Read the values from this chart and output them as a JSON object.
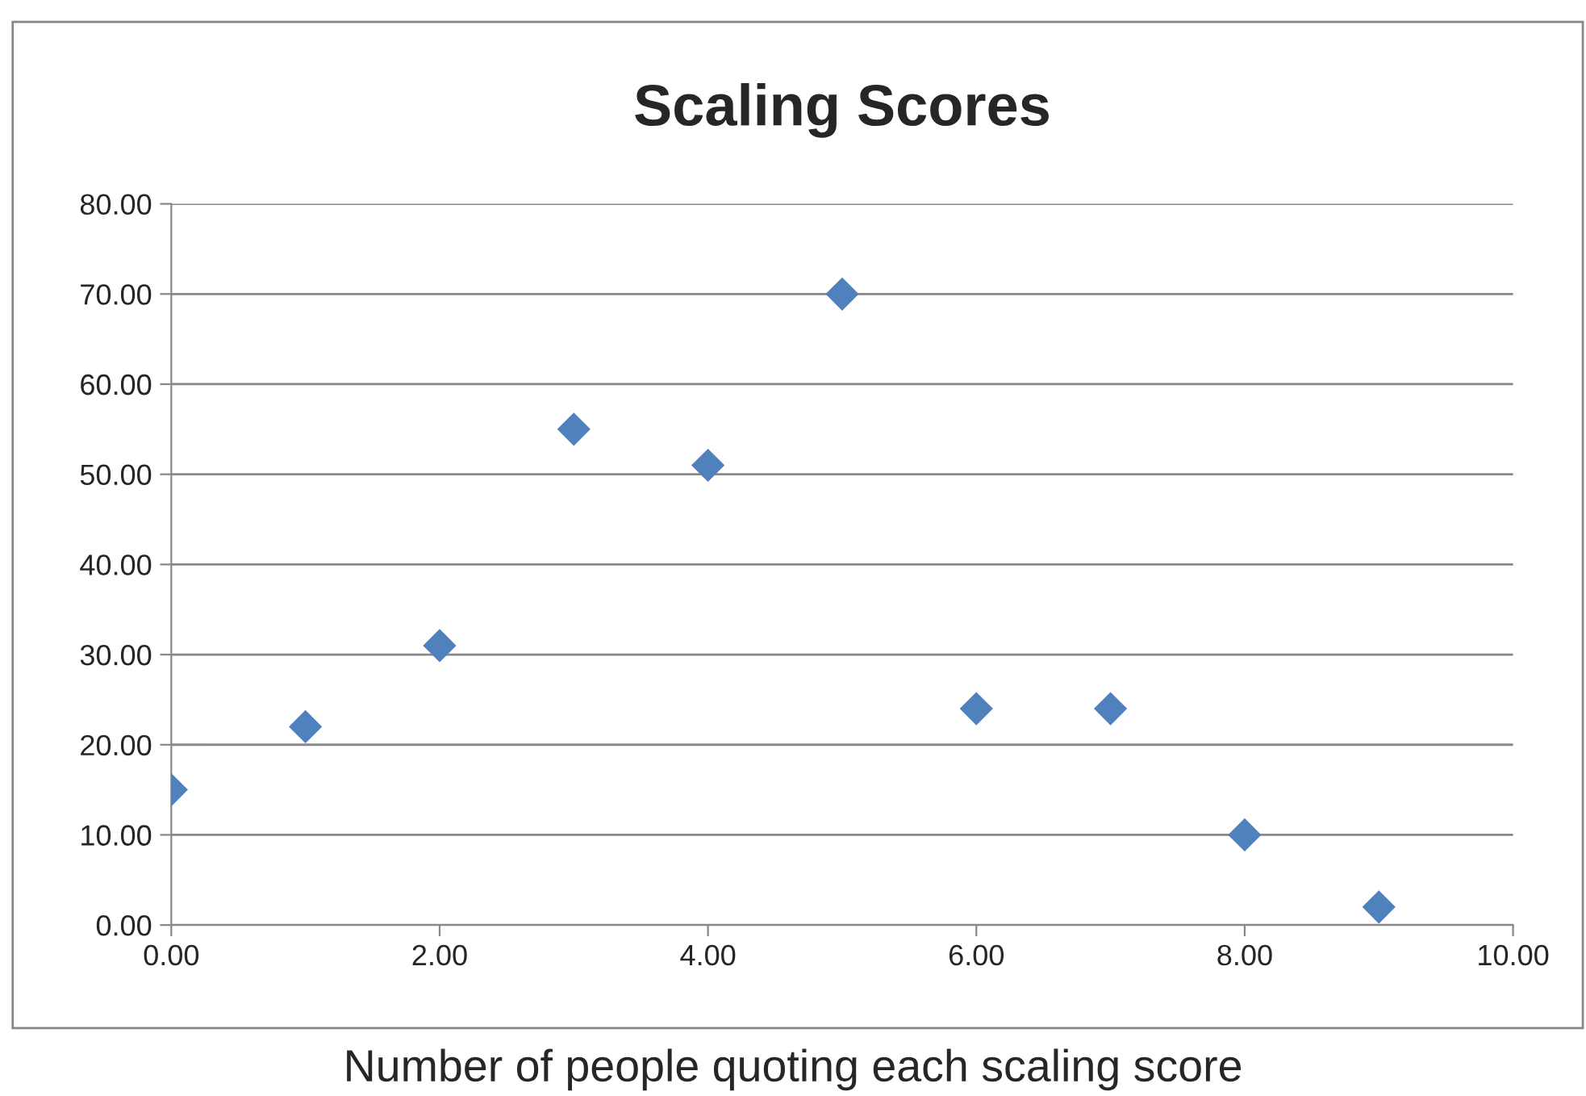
{
  "chart_data": {
    "type": "scatter",
    "title": "Scaling Scores",
    "xlabel": "Number of people quoting each scaling score",
    "x": [
      0,
      1,
      2,
      3,
      4,
      5,
      6,
      7,
      8,
      9
    ],
    "series": [
      {
        "color": "#4f81bd",
        "values": [
          15,
          22,
          31,
          55,
          51,
          70,
          24,
          24,
          10,
          2
        ]
      }
    ],
    "marker": "diamond",
    "grid": "y",
    "legend": false,
    "xlim": [
      0,
      10
    ],
    "ylim": [
      0,
      80
    ],
    "xticks": [
      {
        "value": 0,
        "label": "0.00"
      },
      {
        "value": 2,
        "label": "2.00"
      },
      {
        "value": 4,
        "label": "4.00"
      },
      {
        "value": 6,
        "label": "6.00"
      },
      {
        "value": 8,
        "label": "8.00"
      },
      {
        "value": 10,
        "label": "10.00"
      }
    ],
    "yticks": [
      {
        "value": 0,
        "label": "0.00"
      },
      {
        "value": 10,
        "label": "10.00"
      },
      {
        "value": 20,
        "label": "20.00"
      },
      {
        "value": 30,
        "label": "30.00"
      },
      {
        "value": 40,
        "label": "40.00"
      },
      {
        "value": 50,
        "label": "50.00"
      },
      {
        "value": 60,
        "label": "60.00"
      },
      {
        "value": 70,
        "label": "70.00"
      },
      {
        "value": 80,
        "label": "80.00"
      }
    ]
  }
}
